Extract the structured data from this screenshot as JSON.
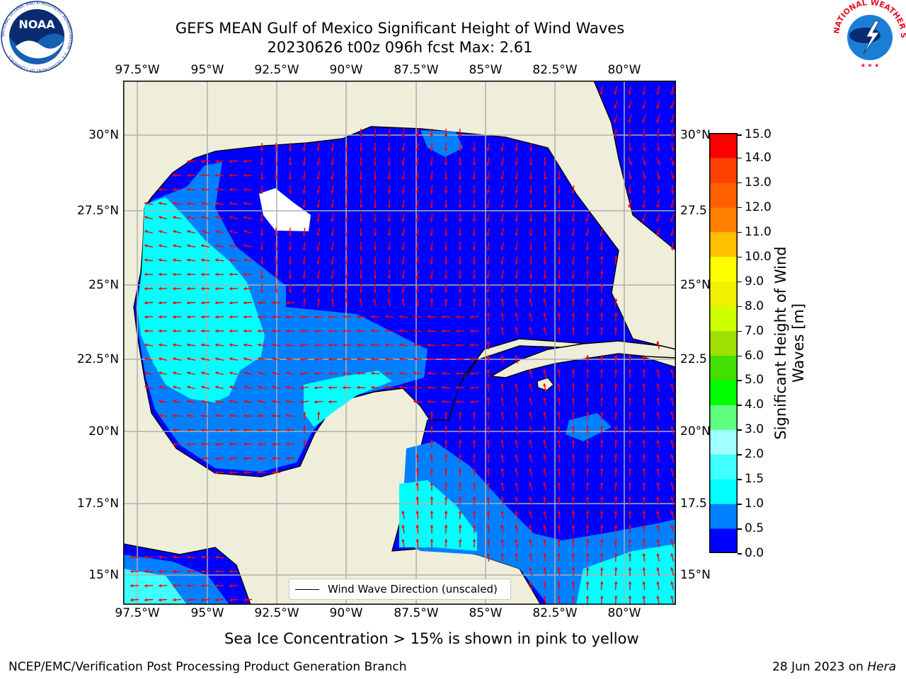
{
  "title": {
    "line1": "GEFS MEAN Gulf of Mexico Significant Height of Wind Waves",
    "line2": "20230626 t00z 096h fcst   Max: 2.61"
  },
  "map": {
    "lon_ticks": [
      "97.5°W",
      "95°W",
      "92.5°W",
      "90°W",
      "87.5°W",
      "85°W",
      "82.5°W",
      "80°W"
    ],
    "lat_ticks_left": [
      "30°N",
      "27.5°N",
      "25°N",
      "22.5°N",
      "20°N",
      "17.5°N",
      "15°N"
    ],
    "lat_ticks_right": [
      "30°N",
      "27.5",
      "25°N",
      "22.5",
      "20°N",
      "17.5",
      "15°N"
    ],
    "land_color": "#efeedb",
    "grid_color": "#b0b0b0",
    "arrow_color": "#ff0000",
    "legend_label": "Wind Wave Direction (unscaled)"
  },
  "colorbar": {
    "title_line1": "Significant Height of Wind",
    "title_line2": "Waves [m]",
    "labels": [
      "15.0",
      "14.0",
      "13.0",
      "12.0",
      "11.0",
      "10.0",
      "9.0",
      "8.0",
      "7.0",
      "6.0",
      "5.0",
      "4.0",
      "3.0",
      "2.0",
      "1.5",
      "1.0",
      "0.5",
      "0.0"
    ],
    "colors_bottom_to_top": [
      "#0000ff",
      "#0080ff",
      "#00ffff",
      "#40ffff",
      "#a0ffff",
      "#60ff80",
      "#00ff00",
      "#40e000",
      "#a0e000",
      "#d0ff00",
      "#f0f000",
      "#ffff00",
      "#ffc000",
      "#ff8000",
      "#ff6000",
      "#ff4000",
      "#ff0000"
    ]
  },
  "ice_note": "Sea Ice Concentration > 15% is shown in pink to yellow",
  "footer": {
    "left": "NCEP/EMC/Verification Post Processing Product Generation Branch",
    "date": "28 Jun 2023 on ",
    "machine": "Hera"
  },
  "logos": {
    "noaa_text": "NOAA",
    "noaa_ring_text": "NATIONAL OCEANIC AND ATMOSPHERIC ADMINISTRATION · U.S. DEPARTMENT OF COMMERCE ·",
    "nws_ring_text": "NATIONAL WEATHER SERVICE"
  }
}
